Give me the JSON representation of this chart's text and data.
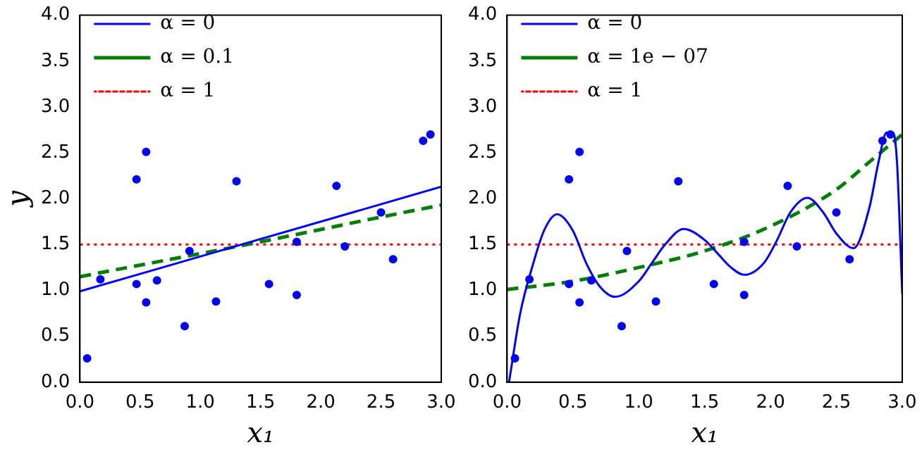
{
  "chart_data": [
    {
      "type": "line",
      "ylabel": "y",
      "xlabel": "x₁",
      "xlim": [
        0,
        3
      ],
      "ylim": [
        0,
        4
      ],
      "xticks": [
        {
          "value": 0,
          "label": "0.0"
        },
        {
          "value": 0.5,
          "label": "0.5"
        },
        {
          "value": 1,
          "label": "1.0"
        },
        {
          "value": 1.5,
          "label": "1.5"
        },
        {
          "value": 2,
          "label": "2.0"
        },
        {
          "value": 2.5,
          "label": "2.5"
        },
        {
          "value": 3,
          "label": "3.0"
        }
      ],
      "yticks": [
        {
          "value": 0,
          "label": "0.0"
        },
        {
          "value": 0.5,
          "label": "0.5"
        },
        {
          "value": 1,
          "label": "1.0"
        },
        {
          "value": 1.5,
          "label": "1.5"
        },
        {
          "value": 2,
          "label": "2.0"
        },
        {
          "value": 2.5,
          "label": "2.5"
        },
        {
          "value": 3,
          "label": "3.0"
        },
        {
          "value": 3.5,
          "label": "3.5"
        },
        {
          "value": 4,
          "label": "4.0"
        }
      ],
      "grid": false,
      "legend": "top left",
      "series": [
        {
          "type": "scatter",
          "marker": "circle",
          "color": "#0000ff",
          "x": [
            0.06,
            0.17,
            0.47,
            0.47,
            0.55,
            0.55,
            0.64,
            0.87,
            0.91,
            1.13,
            1.3,
            1.57,
            1.8,
            1.8,
            2.13,
            2.2,
            2.5,
            2.6,
            2.85,
            2.91
          ],
          "values": [
            0.26,
            1.12,
            2.21,
            1.07,
            2.51,
            0.87,
            1.11,
            0.61,
            1.43,
            0.88,
            2.19,
            1.07,
            1.53,
            0.95,
            2.14,
            1.48,
            1.85,
            1.34,
            2.63,
            2.7
          ]
        },
        {
          "type": "line",
          "name": "α = 0",
          "color": "#0000ff",
          "line_style": "solid",
          "x": [
            0,
            3
          ],
          "values": [
            0.99,
            2.13
          ]
        },
        {
          "type": "line",
          "name": "α = 0.1",
          "color": "#008000",
          "line_style": "dashed",
          "x": [
            0,
            1.5,
            2.5,
            3
          ],
          "values": [
            1.15,
            1.53,
            1.8,
            1.93
          ]
        },
        {
          "type": "line",
          "name": "α = 1",
          "color": "#ff0000",
          "line_style": "dotted",
          "x": [
            0,
            3
          ],
          "values": [
            1.5,
            1.5
          ]
        }
      ]
    },
    {
      "type": "line",
      "xlabel": "x₁",
      "xlim": [
        0,
        3
      ],
      "ylim": [
        0,
        4
      ],
      "xticks": [
        {
          "value": 0,
          "label": "0.0"
        },
        {
          "value": 0.5,
          "label": "0.5"
        },
        {
          "value": 1,
          "label": "1.0"
        },
        {
          "value": 1.5,
          "label": "1.5"
        },
        {
          "value": 2,
          "label": "2.0"
        },
        {
          "value": 2.5,
          "label": "2.5"
        },
        {
          "value": 3,
          "label": "3.0"
        }
      ],
      "yticks": [
        {
          "value": 0,
          "label": "0.0"
        },
        {
          "value": 0.5,
          "label": "0.5"
        },
        {
          "value": 1,
          "label": "1.0"
        },
        {
          "value": 1.5,
          "label": "1.5"
        },
        {
          "value": 2,
          "label": "2.0"
        },
        {
          "value": 2.5,
          "label": "2.5"
        },
        {
          "value": 3,
          "label": "3.0"
        },
        {
          "value": 3.5,
          "label": "3.5"
        },
        {
          "value": 4,
          "label": "4.0"
        }
      ],
      "grid": false,
      "legend": "top left",
      "series": [
        {
          "type": "scatter",
          "marker": "circle",
          "color": "#0000ff",
          "x": [
            0.06,
            0.17,
            0.47,
            0.47,
            0.55,
            0.55,
            0.64,
            0.87,
            0.91,
            1.13,
            1.3,
            1.57,
            1.8,
            1.8,
            2.13,
            2.2,
            2.5,
            2.6,
            2.85,
            2.91
          ],
          "values": [
            0.26,
            1.12,
            2.21,
            1.07,
            2.51,
            0.87,
            1.11,
            0.61,
            1.43,
            0.88,
            2.19,
            1.07,
            1.53,
            0.95,
            2.14,
            1.48,
            1.85,
            1.34,
            2.63,
            2.7
          ]
        },
        {
          "type": "line",
          "name": "α = 0",
          "color": "#0000ff",
          "line_style": "solid",
          "x": [
            0.015,
            0.1,
            0.2,
            0.28,
            0.38,
            0.5,
            0.6,
            0.7,
            0.82,
            1.0,
            1.1,
            1.2,
            1.34,
            1.5,
            1.6,
            1.7,
            1.8,
            1.95,
            2.05,
            2.15,
            2.28,
            2.4,
            2.5,
            2.63,
            2.75,
            2.82,
            2.88,
            2.93,
            2.96,
            3.0
          ],
          "values": [
            0,
            0.75,
            1.3,
            1.65,
            1.83,
            1.65,
            1.3,
            1.05,
            0.93,
            1.1,
            1.3,
            1.5,
            1.67,
            1.55,
            1.4,
            1.25,
            1.17,
            1.3,
            1.55,
            1.85,
            2.01,
            1.85,
            1.62,
            1.46,
            1.9,
            2.4,
            2.72,
            2.72,
            2.4,
            0.96
          ]
        },
        {
          "type": "line",
          "name": "α = 1e − 07",
          "color": "#008000",
          "line_style": "dashed",
          "x": [
            0,
            0.5,
            1,
            1.5,
            2,
            2.5,
            2.75,
            3
          ],
          "values": [
            1.01,
            1.1,
            1.25,
            1.43,
            1.7,
            2.1,
            2.4,
            2.7
          ]
        },
        {
          "type": "line",
          "name": "α = 1",
          "color": "#ff0000",
          "line_style": "dotted",
          "x": [
            0,
            3
          ],
          "values": [
            1.5,
            1.5
          ]
        }
      ]
    }
  ]
}
